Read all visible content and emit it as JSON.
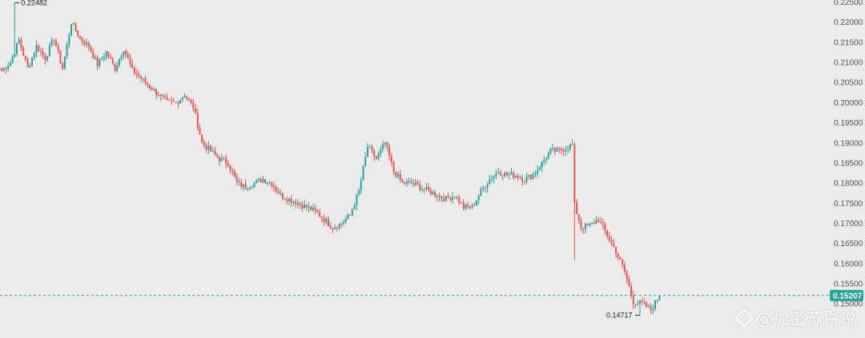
{
  "chart_data": {
    "type": "candlestick",
    "ylim": [
      0.1425,
      0.2255
    ],
    "yticks": [
      "0.22500",
      "0.22000",
      "0.21500",
      "0.21000",
      "0.20500",
      "0.20000",
      "0.19500",
      "0.19000",
      "0.18500",
      "0.18000",
      "0.17500",
      "0.17000",
      "0.16500",
      "0.16000",
      "0.15500",
      "0.15000"
    ],
    "grid": false,
    "current_price": "0.15207",
    "current_price_value": 0.15207,
    "max_marker": {
      "label": "0.22482",
      "value": 0.22482
    },
    "min_marker": {
      "label": "0.14717",
      "value": 0.14717
    },
    "up_color": "#26a69a",
    "down_color": "#ef5350",
    "anchors": [
      [
        0,
        0.208
      ],
      [
        4,
        0.21
      ],
      [
        8,
        0.2155
      ],
      [
        12,
        0.2085
      ],
      [
        16,
        0.214
      ],
      [
        20,
        0.211
      ],
      [
        24,
        0.216
      ],
      [
        28,
        0.2085
      ],
      [
        32,
        0.22
      ],
      [
        36,
        0.216
      ],
      [
        40,
        0.214
      ],
      [
        44,
        0.2095
      ],
      [
        48,
        0.2125
      ],
      [
        52,
        0.2085
      ],
      [
        56,
        0.2135
      ],
      [
        60,
        0.208
      ],
      [
        64,
        0.206
      ],
      [
        68,
        0.204
      ],
      [
        72,
        0.202
      ],
      [
        76,
        0.2
      ],
      [
        80,
        0.2
      ],
      [
        84,
        0.202
      ],
      [
        88,
        0.199
      ],
      [
        92,
        0.19
      ],
      [
        96,
        0.188
      ],
      [
        100,
        0.186
      ],
      [
        104,
        0.185
      ],
      [
        108,
        0.18
      ],
      [
        112,
        0.179
      ],
      [
        116,
        0.18
      ],
      [
        120,
        0.181
      ],
      [
        124,
        0.18
      ],
      [
        128,
        0.177
      ],
      [
        132,
        0.176
      ],
      [
        136,
        0.175
      ],
      [
        140,
        0.174
      ],
      [
        144,
        0.173
      ],
      [
        148,
        0.171
      ],
      [
        152,
        0.169
      ],
      [
        156,
        0.17
      ],
      [
        160,
        0.172
      ],
      [
        164,
        0.178
      ],
      [
        168,
        0.189
      ],
      [
        172,
        0.186
      ],
      [
        176,
        0.19
      ],
      [
        180,
        0.183
      ],
      [
        184,
        0.18
      ],
      [
        188,
        0.18
      ],
      [
        192,
        0.179
      ],
      [
        196,
        0.178
      ],
      [
        200,
        0.177
      ],
      [
        204,
        0.176
      ],
      [
        208,
        0.177
      ],
      [
        212,
        0.174
      ],
      [
        216,
        0.174
      ],
      [
        220,
        0.178
      ],
      [
        224,
        0.181
      ],
      [
        228,
        0.183
      ],
      [
        232,
        0.182
      ],
      [
        236,
        0.182
      ],
      [
        240,
        0.181
      ],
      [
        244,
        0.182
      ],
      [
        248,
        0.185
      ],
      [
        252,
        0.188
      ],
      [
        256,
        0.188
      ],
      [
        260,
        0.189
      ],
      [
        262,
        0.1895
      ],
      [
        263,
        0.1745
      ],
      [
        266,
        0.169
      ],
      [
        270,
        0.1695
      ],
      [
        274,
        0.171
      ],
      [
        278,
        0.167
      ],
      [
        282,
        0.163
      ],
      [
        286,
        0.158
      ],
      [
        290,
        0.1505
      ],
      [
        294,
        0.15
      ],
      [
        298,
        0.1485
      ],
      [
        302,
        0.152
      ]
    ]
  },
  "watermark": {
    "text": "@加密苏白说"
  }
}
